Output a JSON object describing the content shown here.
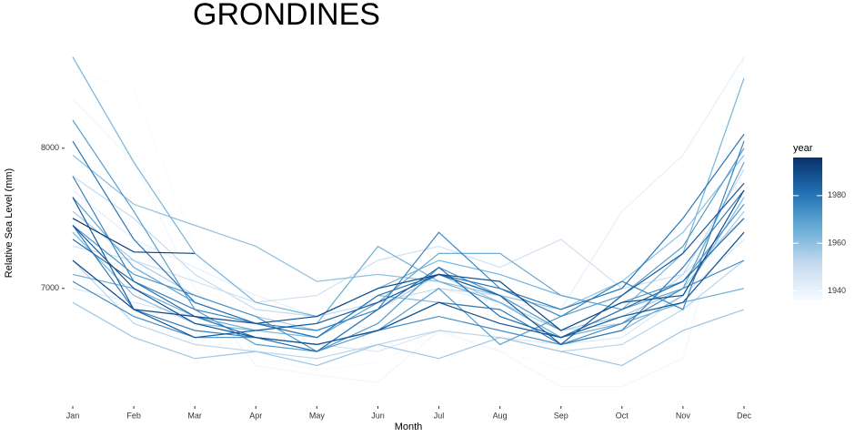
{
  "chart_data": {
    "type": "line",
    "title": "GRONDINES",
    "x_label": "Month",
    "y_label": "Relative Sea Level (mm)",
    "categories": [
      "Jan",
      "Feb",
      "Mar",
      "Apr",
      "May",
      "Jun",
      "Jul",
      "Aug",
      "Sep",
      "Oct",
      "Nov",
      "Dec"
    ],
    "ylim": [
      6200,
      8700
    ],
    "yticks": [
      7000,
      8000
    ],
    "colorbar": {
      "title": "year",
      "lim": [
        1936,
        1996
      ],
      "ticks": [
        1940,
        1960,
        1980
      ],
      "colors": [
        "#f7fbff",
        "#c6dbef",
        "#6baed6",
        "#2171b5",
        "#08306b"
      ]
    },
    "series": [
      {
        "year": 1936,
        "values": [
          8550,
          8420,
          7300,
          6500,
          6420,
          6470,
          6680,
          6560,
          6420,
          6500,
          6650,
          8650
        ]
      },
      {
        "year": 1938,
        "values": [
          8350,
          7900,
          7000,
          6450,
          6380,
          6330,
          6700,
          6550,
          6300,
          6300,
          6500,
          8100
        ]
      },
      {
        "year": 1941,
        "values": [
          7700,
          7350,
          7150,
          6950,
          6800,
          6700,
          7000,
          6900,
          6850,
          7550,
          7950,
          8650
        ]
      },
      {
        "year": 1945,
        "values": [
          7000,
          6900,
          6800,
          6650,
          6600,
          6550,
          6700,
          6650,
          6600,
          6650,
          6950,
          7350
        ]
      },
      {
        "year": 1948,
        "values": [
          7300,
          7200,
          7050,
          6900,
          6950,
          7200,
          7300,
          7150,
          7350,
          7000,
          7100,
          7500
        ]
      },
      {
        "year": 1951,
        "values": [
          7800,
          7500,
          7100,
          6850,
          6800,
          6900,
          7000,
          6950,
          6700,
          6750,
          7100,
          7850
        ]
      },
      {
        "year": 1953,
        "values": [
          7200,
          6750,
          6600,
          6550,
          6500,
          6600,
          6700,
          6650,
          6550,
          6600,
          6850,
          7200
        ]
      },
      {
        "year": 1956,
        "values": [
          7550,
          7200,
          6950,
          6800,
          6700,
          6850,
          7100,
          6900,
          6700,
          6800,
          7000,
          7550
        ]
      },
      {
        "year": 1958,
        "values": [
          6900,
          6650,
          6500,
          6550,
          6450,
          6600,
          6500,
          6650,
          6550,
          6450,
          6700,
          6850
        ]
      },
      {
        "year": 1960,
        "values": [
          7950,
          7600,
          7450,
          7300,
          7050,
          7100,
          7050,
          6950,
          6850,
          7050,
          7400,
          7950
        ]
      },
      {
        "year": 1962,
        "values": [
          7400,
          6950,
          6750,
          6700,
          6650,
          6950,
          6900,
          6850,
          6600,
          6700,
          6950,
          7650
        ]
      },
      {
        "year": 1964,
        "values": [
          8650,
          7900,
          7250,
          6900,
          6800,
          7000,
          7200,
          7100,
          6950,
          6850,
          7250,
          8500
        ]
      },
      {
        "year": 1966,
        "values": [
          7100,
          7000,
          6800,
          6700,
          6750,
          7300,
          7050,
          6900,
          6650,
          6750,
          6900,
          7000
        ]
      },
      {
        "year": 1968,
        "values": [
          7650,
          7150,
          6900,
          6750,
          6650,
          6900,
          7250,
          7250,
          6950,
          6850,
          7000,
          7900
        ]
      },
      {
        "year": 1970,
        "values": [
          8200,
          7550,
          6850,
          6600,
          6550,
          6700,
          7000,
          6600,
          6800,
          6950,
          7300,
          8000
        ]
      },
      {
        "year": 1972,
        "values": [
          7450,
          7100,
          6950,
          6800,
          6550,
          6750,
          7150,
          6950,
          6700,
          6900,
          7050,
          7600
        ]
      },
      {
        "year": 1974,
        "values": [
          7050,
          6800,
          6650,
          6650,
          6600,
          6700,
          6800,
          6700,
          6600,
          6750,
          7000,
          7200
        ]
      },
      {
        "year": 1976,
        "values": [
          7800,
          7050,
          6850,
          6750,
          6700,
          6850,
          7400,
          7000,
          6800,
          7050,
          6850,
          8050
        ]
      },
      {
        "year": 1978,
        "values": [
          7450,
          6850,
          6700,
          6650,
          6600,
          6700,
          6900,
          6850,
          6600,
          6700,
          7150,
          7700
        ]
      },
      {
        "year": 1980,
        "values": [
          8050,
          7350,
          6900,
          6750,
          6650,
          6950,
          7100,
          7000,
          6850,
          7000,
          7500,
          8100
        ]
      },
      {
        "year": 1982,
        "values": [
          7350,
          7050,
          6800,
          6650,
          6550,
          6850,
          7150,
          6800,
          6650,
          6850,
          7050,
          7500
        ]
      },
      {
        "year": 1986,
        "values": [
          7650,
          6850,
          6650,
          6700,
          6750,
          6900,
          7100,
          6950,
          6600,
          6950,
          7250,
          7750
        ]
      },
      {
        "year": 1988,
        "values": [
          7450,
          7000,
          6750,
          6650,
          6600,
          6700,
          6900,
          6750,
          6650,
          6800,
          6900,
          7400
        ]
      },
      {
        "year": 1990,
        "values": [
          7200,
          6850,
          6800,
          6750,
          6800,
          7000,
          7100,
          7050,
          6700,
          6900,
          6950,
          7700
        ]
      },
      {
        "year": 1993,
        "values": [
          7500,
          7260,
          7250,
          null,
          null,
          null,
          null,
          null,
          null,
          null,
          null,
          null
        ]
      }
    ]
  }
}
